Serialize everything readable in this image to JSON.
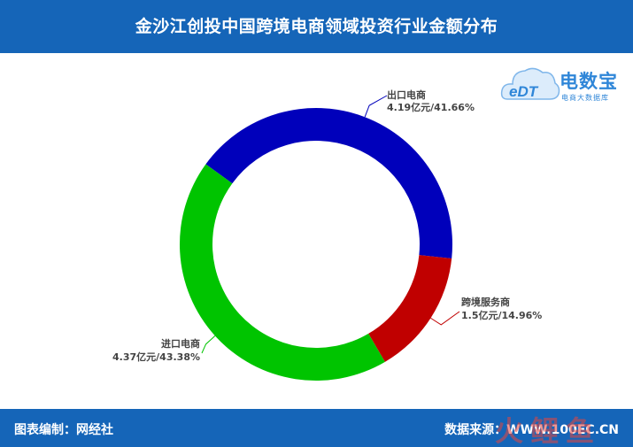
{
  "header": {
    "title": "金沙江创投中国跨境电商领域投资行业金额分布"
  },
  "logo": {
    "badge": "eDT",
    "name": "电数宝",
    "subtitle": "电商大数据库",
    "color": "#2f86d8"
  },
  "footer": {
    "left": "图表编制：网经社",
    "right": "数据来源：WWW.100EC.CN"
  },
  "watermark": {
    "text": "火鲤鱼"
  },
  "colors": {
    "header_bg": "#1565b8",
    "export": "#0000bb",
    "service": "#c00000",
    "import": "#00c400"
  },
  "chart_data": {
    "type": "pie",
    "subtype": "donut",
    "slices": [
      {
        "name": "出口电商",
        "value": 4.19,
        "unit": "亿元",
        "percent": 41.66,
        "label": "4.19亿元/41.66%",
        "color": "#0000bb"
      },
      {
        "name": "跨境服务商",
        "value": 1.5,
        "unit": "亿元",
        "percent": 14.96,
        "label": "1.5亿元/14.96%",
        "color": "#c00000"
      },
      {
        "name": "进口电商",
        "value": 4.37,
        "unit": "亿元",
        "percent": 43.38,
        "label": "4.37亿元/43.38%",
        "color": "#00c400"
      }
    ],
    "start_angle_deg": 306,
    "direction": "clockwise"
  }
}
